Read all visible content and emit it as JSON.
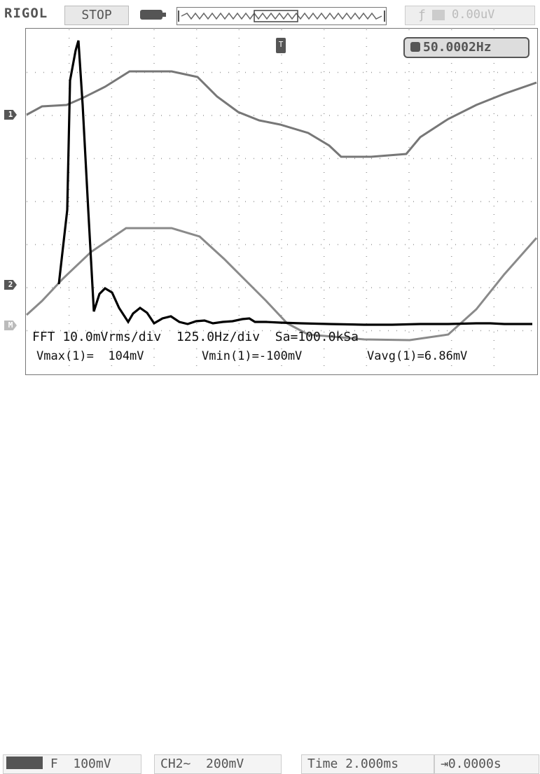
{
  "header": {
    "brand": "RIGOL",
    "run_state": "STOP",
    "trigger_slope_icon": "rising-edge-icon",
    "trigger_level": "0.00uV"
  },
  "screen": {
    "frequency": "50.0002Hz",
    "trigger_marker_label": "T",
    "channel_markers": [
      "1",
      "2",
      "M"
    ]
  },
  "math": {
    "fft_line": "FFT 10.0mVrms/div  125.0Hz/div  Sa=100.0kSa",
    "vmax": "Vmax(1)=  104mV",
    "vmin": "Vmin(1)=-100mV",
    "vavg": "Vavg(1)=6.86mV"
  },
  "footer": {
    "ch1_coupling_icon": "dc-coupling-icon",
    "ch1_bw_flag": "F",
    "ch1_scale": "100mV",
    "ch2_label": "CH2~",
    "ch2_scale": "200mV",
    "time_label": "Time 2.000ms",
    "offset_label": "⇥0.0000s"
  },
  "colors": {
    "ch1_trace": "#777777",
    "ch2_trace": "#8a8a8a",
    "fft_trace": "#000000",
    "grid": "#9a9a9a"
  }
}
